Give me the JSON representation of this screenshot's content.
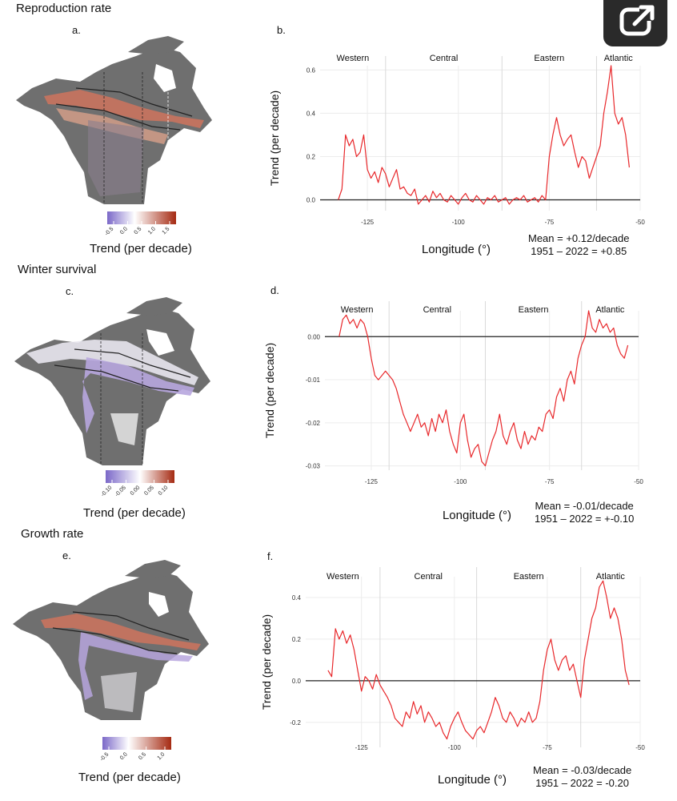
{
  "share_button": {
    "icon": "share-icon"
  },
  "panels": [
    {
      "section_title": "Reproduction rate",
      "map_letter": "a.",
      "chart_letter": "b.",
      "colorbar": {
        "title": "Trend (per decade)",
        "ticks": [
          "-0.5",
          "0.0",
          "0.5",
          "1.0",
          "1.5"
        ],
        "range": [
          -1.0,
          1.5
        ],
        "colors": [
          "#7b68c8",
          "#ffffff",
          "#a52a12"
        ]
      },
      "stats": {
        "mean": "Mean = +0.12/decade",
        "total": "1951 – 2022 = +0.85"
      }
    },
    {
      "section_title": "Winter survival",
      "map_letter": "c.",
      "chart_letter": "d.",
      "colorbar": {
        "title": "Trend (per decade)",
        "ticks": [
          "-0.10",
          "-0.05",
          "0.00",
          "0.05",
          "0.10"
        ],
        "range": [
          -0.1,
          0.1
        ],
        "colors": [
          "#7b68c8",
          "#ffffff",
          "#a52a12"
        ]
      },
      "stats": {
        "mean": "Mean = -0.01/decade",
        "total": "1951 – 2022 = +-0.10"
      }
    },
    {
      "section_title": "Growth rate",
      "map_letter": "e.",
      "chart_letter": "f.",
      "colorbar": {
        "title": "Trend (per decade)",
        "ticks": [
          "-0.5",
          "0.0",
          "0.5",
          "1.0"
        ],
        "range": [
          -0.8,
          1.3
        ],
        "colors": [
          "#7b68c8",
          "#ffffff",
          "#a52a12"
        ]
      },
      "stats": {
        "mean": "Mean = -0.03/decade",
        "total": "1951 – 2022 = -0.20"
      }
    }
  ],
  "chart_data": [
    {
      "type": "line",
      "title": "",
      "xlabel": "Longitude (°)",
      "ylabel": "Trend (per decade)",
      "xlim": [
        -138,
        -50
      ],
      "ylim": [
        -0.05,
        0.62
      ],
      "xticks": [
        "-125",
        "-100",
        "-75",
        "-50"
      ],
      "yticks": [
        "0.0",
        "0.2",
        "0.4",
        "0.6"
      ],
      "grid": true,
      "regions": [
        "Western",
        "Central",
        "Eastern",
        "Atlantic"
      ],
      "region_boundaries": [
        -120,
        -88,
        -62
      ],
      "series": [
        {
          "color": "#e8282b",
          "x": [
            -133,
            -132,
            -131,
            -130,
            -129,
            -128,
            -127,
            -126,
            -125,
            -124,
            -123,
            -122,
            -121,
            -120,
            -119,
            -118,
            -117,
            -116,
            -115,
            -114,
            -113,
            -112,
            -111,
            -110,
            -109,
            -108,
            -107,
            -106,
            -105,
            -104,
            -103,
            -102,
            -101,
            -100,
            -99,
            -98,
            -97,
            -96,
            -95,
            -94,
            -93,
            -92,
            -91,
            -90,
            -89,
            -88,
            -87,
            -86,
            -85,
            -84,
            -83,
            -82,
            -81,
            -80,
            -79,
            -78,
            -77,
            -76,
            -75,
            -74,
            -73,
            -72,
            -71,
            -70,
            -69,
            -68,
            -67,
            -66,
            -65,
            -64,
            -63,
            -62,
            -61,
            -60,
            -59,
            -58,
            -57,
            -56,
            -55,
            -54,
            -53
          ],
          "y": [
            0.0,
            0.05,
            0.3,
            0.25,
            0.28,
            0.2,
            0.22,
            0.3,
            0.14,
            0.1,
            0.13,
            0.08,
            0.15,
            0.12,
            0.06,
            0.1,
            0.14,
            0.05,
            0.06,
            0.03,
            0.02,
            0.05,
            -0.02,
            0.0,
            0.02,
            -0.01,
            0.04,
            0.01,
            0.03,
            0.0,
            -0.01,
            0.02,
            0.0,
            -0.02,
            0.01,
            0.03,
            0.0,
            -0.01,
            0.02,
            0.0,
            -0.02,
            0.01,
            0.0,
            0.02,
            -0.01,
            0.0,
            0.01,
            -0.02,
            0.0,
            0.01,
            0.0,
            0.02,
            -0.01,
            0.0,
            0.01,
            -0.01,
            0.02,
            0.0,
            0.2,
            0.3,
            0.38,
            0.3,
            0.25,
            0.28,
            0.3,
            0.22,
            0.15,
            0.2,
            0.18,
            0.1,
            0.15,
            0.2,
            0.25,
            0.4,
            0.5,
            0.62,
            0.4,
            0.35,
            0.38,
            0.3,
            0.15
          ]
        }
      ],
      "annotations": [
        "Mean = +0.12/decade",
        "1951 – 2022 = +0.85"
      ]
    },
    {
      "type": "line",
      "title": "",
      "xlabel": "Longitude (°)",
      "ylabel": "Trend (per decade)",
      "xlim": [
        -138,
        -50
      ],
      "ylim": [
        -0.031,
        0.006
      ],
      "xticks": [
        "-125",
        "-100",
        "-75",
        "-50"
      ],
      "yticks": [
        "0.00",
        "-0.01",
        "-0.02",
        "-0.03"
      ],
      "grid": true,
      "regions": [
        "Western",
        "Central",
        "Eastern",
        "Atlantic"
      ],
      "region_boundaries": [
        -120,
        -93,
        -66
      ],
      "series": [
        {
          "color": "#e8282b",
          "x": [
            -134,
            -133,
            -132,
            -131,
            -130,
            -129,
            -128,
            -127,
            -126,
            -125,
            -124,
            -123,
            -122,
            -121,
            -120,
            -119,
            -118,
            -117,
            -116,
            -115,
            -114,
            -113,
            -112,
            -111,
            -110,
            -109,
            -108,
            -107,
            -106,
            -105,
            -104,
            -103,
            -102,
            -101,
            -100,
            -99,
            -98,
            -97,
            -96,
            -95,
            -94,
            -93,
            -92,
            -91,
            -90,
            -89,
            -88,
            -87,
            -86,
            -85,
            -84,
            -83,
            -82,
            -81,
            -80,
            -79,
            -78,
            -77,
            -76,
            -75,
            -74,
            -73,
            -72,
            -71,
            -70,
            -69,
            -68,
            -67,
            -66,
            -65,
            -64,
            -63,
            -62,
            -61,
            -60,
            -59,
            -58,
            -57,
            -56,
            -55,
            -54,
            -53
          ],
          "y": [
            0.0,
            0.004,
            0.005,
            0.003,
            0.004,
            0.002,
            0.004,
            0.003,
            0.0,
            -0.005,
            -0.009,
            -0.01,
            -0.009,
            -0.008,
            -0.009,
            -0.01,
            -0.012,
            -0.015,
            -0.018,
            -0.02,
            -0.022,
            -0.02,
            -0.018,
            -0.021,
            -0.02,
            -0.023,
            -0.019,
            -0.022,
            -0.018,
            -0.02,
            -0.017,
            -0.022,
            -0.025,
            -0.027,
            -0.02,
            -0.018,
            -0.024,
            -0.028,
            -0.026,
            -0.025,
            -0.029,
            -0.03,
            -0.027,
            -0.024,
            -0.022,
            -0.018,
            -0.023,
            -0.025,
            -0.022,
            -0.02,
            -0.024,
            -0.026,
            -0.022,
            -0.025,
            -0.023,
            -0.024,
            -0.021,
            -0.022,
            -0.018,
            -0.017,
            -0.019,
            -0.014,
            -0.012,
            -0.015,
            -0.01,
            -0.008,
            -0.011,
            -0.005,
            -0.002,
            0.0,
            0.006,
            0.002,
            0.001,
            0.004,
            0.002,
            0.003,
            0.001,
            0.002,
            -0.002,
            -0.004,
            -0.005,
            -0.002
          ]
        }
      ],
      "annotations": [
        "Mean = -0.01/decade",
        "1951 – 2022 = +-0.10"
      ]
    },
    {
      "type": "line",
      "title": "",
      "xlabel": "Longitude (°)",
      "ylabel": "Trend (per decade)",
      "xlim": [
        -140,
        -50
      ],
      "ylim": [
        -0.32,
        0.5
      ],
      "xticks": [
        "-125",
        "-100",
        "-75",
        "-50"
      ],
      "yticks": [
        "0.4",
        "0.2",
        "0.0",
        "-0.2"
      ],
      "grid": true,
      "regions": [
        "Western",
        "Central",
        "Eastern",
        "Atlantic"
      ],
      "region_boundaries": [
        -120,
        -94,
        -66
      ],
      "series": [
        {
          "color": "#e8282b",
          "x": [
            -134,
            -133,
            -132,
            -131,
            -130,
            -129,
            -128,
            -127,
            -126,
            -125,
            -124,
            -123,
            -122,
            -121,
            -120,
            -119,
            -118,
            -117,
            -116,
            -115,
            -114,
            -113,
            -112,
            -111,
            -110,
            -109,
            -108,
            -107,
            -106,
            -105,
            -104,
            -103,
            -102,
            -101,
            -100,
            -99,
            -98,
            -97,
            -96,
            -95,
            -94,
            -93,
            -92,
            -91,
            -90,
            -89,
            -88,
            -87,
            -86,
            -85,
            -84,
            -83,
            -82,
            -81,
            -80,
            -79,
            -78,
            -77,
            -76,
            -75,
            -74,
            -73,
            -72,
            -71,
            -70,
            -69,
            -68,
            -67,
            -66,
            -65,
            -64,
            -63,
            -62,
            -61,
            -60,
            -59,
            -58,
            -57,
            -56,
            -55,
            -54,
            -53
          ],
          "y": [
            0.05,
            0.02,
            0.25,
            0.2,
            0.24,
            0.18,
            0.22,
            0.15,
            0.05,
            -0.05,
            0.02,
            0.0,
            -0.04,
            0.03,
            -0.02,
            -0.05,
            -0.08,
            -0.12,
            -0.18,
            -0.2,
            -0.22,
            -0.15,
            -0.18,
            -0.1,
            -0.16,
            -0.12,
            -0.2,
            -0.15,
            -0.18,
            -0.22,
            -0.2,
            -0.25,
            -0.28,
            -0.22,
            -0.18,
            -0.15,
            -0.2,
            -0.24,
            -0.26,
            -0.28,
            -0.24,
            -0.22,
            -0.25,
            -0.2,
            -0.15,
            -0.08,
            -0.12,
            -0.18,
            -0.2,
            -0.15,
            -0.18,
            -0.22,
            -0.18,
            -0.2,
            -0.15,
            -0.2,
            -0.18,
            -0.1,
            0.05,
            0.15,
            0.2,
            0.1,
            0.05,
            0.1,
            0.12,
            0.05,
            0.08,
            0.0,
            -0.08,
            0.1,
            0.2,
            0.3,
            0.35,
            0.45,
            0.48,
            0.4,
            0.3,
            0.35,
            0.3,
            0.2,
            0.05,
            -0.02
          ]
        }
      ],
      "annotations": [
        "Mean = -0.03/decade",
        "1951 – 2022 = -0.20"
      ]
    }
  ]
}
